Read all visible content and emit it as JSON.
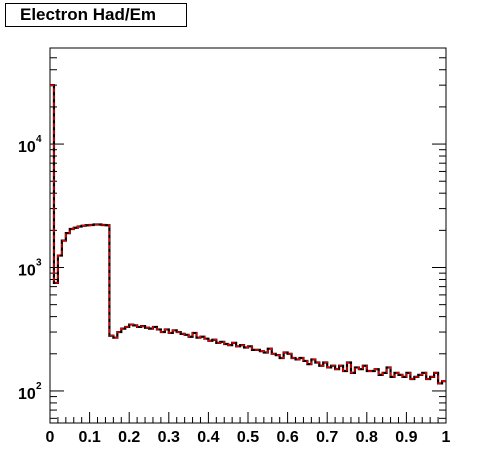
{
  "chart_data": {
    "type": "histogram",
    "title": "Electron Had/Em",
    "xlim": [
      0,
      1
    ],
    "ylim": [
      55,
      60000
    ],
    "yscale": "log",
    "x_tick_labels": [
      "0",
      "0.1",
      "0.2",
      "0.3",
      "0.4",
      "0.5",
      "0.6",
      "0.7",
      "0.8",
      "0.9",
      "1"
    ],
    "y_tick_labels": [
      {
        "base": "10",
        "exp": "2"
      },
      {
        "base": "10",
        "exp": "3"
      },
      {
        "base": "10",
        "exp": "4"
      }
    ],
    "bin_width": 0.01,
    "series": [
      {
        "style": "solid",
        "color": "#000000",
        "values": [
          30000,
          750,
          1250,
          1650,
          1900,
          2050,
          2100,
          2150,
          2180,
          2200,
          2210,
          2230,
          2230,
          2210,
          2200,
          280,
          270,
          300,
          320,
          330,
          345,
          340,
          330,
          335,
          325,
          320,
          330,
          315,
          300,
          315,
          295,
          310,
          300,
          290,
          285,
          275,
          295,
          270,
          275,
          265,
          255,
          260,
          245,
          250,
          240,
          235,
          245,
          230,
          235,
          225,
          230,
          215,
          215,
          210,
          205,
          220,
          200,
          195,
          185,
          205,
          200,
          185,
          180,
          185,
          175,
          165,
          180,
          170,
          160,
          170,
          155,
          160,
          150,
          160,
          145,
          170,
          140,
          155,
          150,
          160,
          145,
          145,
          150,
          135,
          140,
          155,
          130,
          140,
          135,
          130,
          140,
          125,
          130,
          135,
          140,
          125,
          130,
          140,
          115,
          120
        ]
      },
      {
        "style": "dashed",
        "color": "#e00000",
        "values": [
          30000,
          750,
          1250,
          1650,
          1900,
          2050,
          2100,
          2150,
          2180,
          2200,
          2210,
          2230,
          2230,
          2210,
          2200,
          280,
          270,
          300,
          320,
          330,
          345,
          340,
          330,
          335,
          325,
          320,
          330,
          315,
          300,
          315,
          295,
          310,
          300,
          290,
          285,
          275,
          295,
          270,
          275,
          265,
          255,
          260,
          245,
          250,
          240,
          235,
          245,
          230,
          235,
          225,
          230,
          215,
          215,
          210,
          205,
          220,
          200,
          195,
          185,
          205,
          200,
          185,
          180,
          185,
          175,
          165,
          180,
          170,
          160,
          170,
          155,
          160,
          150,
          160,
          145,
          170,
          140,
          155,
          150,
          160,
          145,
          145,
          150,
          135,
          140,
          155,
          130,
          140,
          135,
          130,
          140,
          125,
          130,
          135,
          140,
          125,
          130,
          140,
          115,
          120
        ]
      }
    ]
  }
}
